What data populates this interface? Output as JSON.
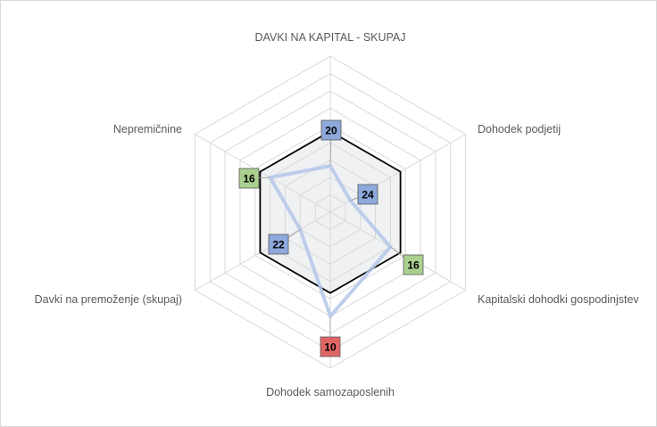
{
  "chart_data": {
    "type": "radar",
    "axes": [
      "DAVKI NA KAPITAL - SKUPAJ",
      "Dohodek podjetij",
      "Kapitalski dohodki gospodinjstev",
      "Dohodek samozaposlenih",
      "Davki na premoženje (skupaj)",
      "Nepremičnine"
    ],
    "rmin": 28,
    "rmax": 1,
    "ring_step": 3,
    "series": [
      {
        "values": [
          20,
          24,
          16,
          10,
          22,
          16
        ],
        "color": "#b4c7e7"
      },
      {
        "values": [
          14,
          14,
          14,
          14,
          14,
          14
        ],
        "color": "#000000"
      }
    ],
    "rank_labels": [
      20,
      24,
      16,
      10,
      22,
      16
    ],
    "rank_colors": {
      "good": "#a9d08e",
      "mid": "#8ea9db",
      "bad": "#e06666"
    },
    "rank_categories": [
      "mid",
      "mid",
      "good",
      "bad",
      "mid",
      "good"
    ],
    "grid": true,
    "legend": "none"
  }
}
